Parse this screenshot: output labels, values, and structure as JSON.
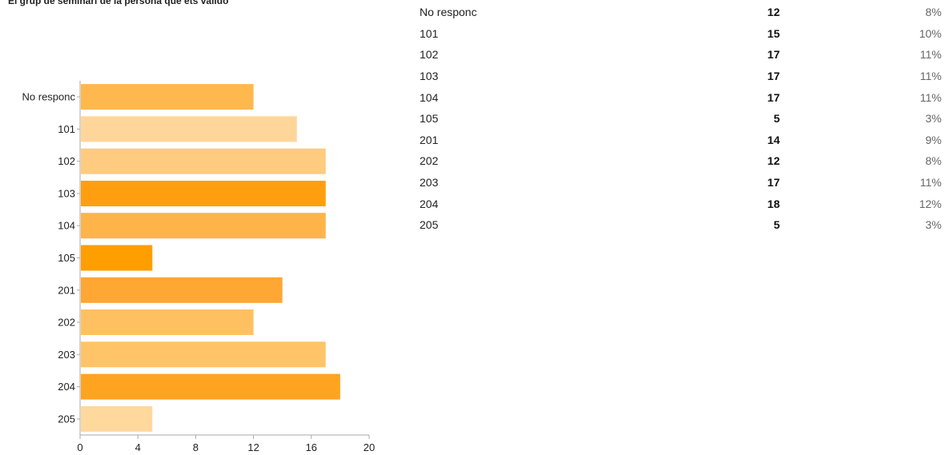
{
  "question": {
    "title": "El grup de seminari de la persona que ets valido"
  },
  "colors": {
    "bar_palette": [
      "#ffb84d",
      "#ffd699",
      "#ffcb80",
      "#ff9f0f",
      "#ffb44a",
      "#ff9e00",
      "#ffa633",
      "#ffc061",
      "#ffc468",
      "#ffa420",
      "#ffd89e"
    ],
    "axis": "#aaaaaa",
    "text": "#222222",
    "percent_text": "#666666"
  },
  "chart_data": {
    "type": "bar",
    "orientation": "horizontal",
    "title": "El grup de seminari de la persona que ets valido",
    "xlabel": "",
    "ylabel": "",
    "categories": [
      "No responc",
      "101",
      "102",
      "103",
      "104",
      "105",
      "201",
      "202",
      "203",
      "204",
      "205"
    ],
    "values": [
      12,
      15,
      17,
      17,
      17,
      5,
      14,
      12,
      17,
      18,
      5
    ],
    "xlim": [
      0,
      20
    ],
    "x_ticks": [
      0,
      4,
      8,
      12,
      16,
      20
    ],
    "grid": false,
    "legend": "none"
  },
  "table": {
    "rows": [
      {
        "label": "No responc",
        "count": "12",
        "percent": "8%"
      },
      {
        "label": "101",
        "count": "15",
        "percent": "10%"
      },
      {
        "label": "102",
        "count": "17",
        "percent": "11%"
      },
      {
        "label": "103",
        "count": "17",
        "percent": "11%"
      },
      {
        "label": "104",
        "count": "17",
        "percent": "11%"
      },
      {
        "label": "105",
        "count": "5",
        "percent": "3%"
      },
      {
        "label": "201",
        "count": "14",
        "percent": "9%"
      },
      {
        "label": "202",
        "count": "12",
        "percent": "8%"
      },
      {
        "label": "203",
        "count": "17",
        "percent": "11%"
      },
      {
        "label": "204",
        "count": "18",
        "percent": "12%"
      },
      {
        "label": "205",
        "count": "5",
        "percent": "3%"
      }
    ]
  }
}
